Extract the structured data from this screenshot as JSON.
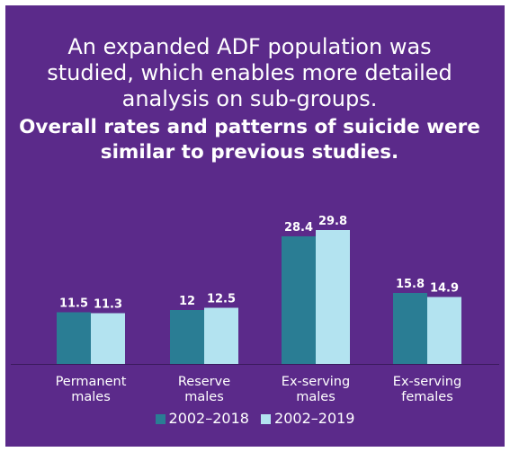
{
  "headline": {
    "lead": "An expanded ADF population was studied, which enables more detailed analysis on sub-groups.",
    "emphasis": "Overall rates and patterns of suicide were similar to previous studies."
  },
  "colors": {
    "background": "#5b2a8a",
    "series_2002_2018": "#2a7d94",
    "series_2002_2019": "#b3e3f0",
    "text": "#ffffff"
  },
  "chart_data": {
    "type": "bar",
    "categories": [
      [
        "Permanent",
        "males"
      ],
      [
        "Reserve",
        "males"
      ],
      [
        "Ex-serving",
        "males"
      ],
      [
        "Ex-serving",
        "females"
      ]
    ],
    "series": [
      {
        "name": "2002–2018",
        "values": [
          11.5,
          12,
          28.4,
          15.8
        ],
        "labels": [
          "11.5",
          "12",
          "28.4",
          "15.8"
        ]
      },
      {
        "name": "2002–2019",
        "values": [
          11.3,
          12.5,
          29.8,
          14.9
        ],
        "labels": [
          "11.3",
          "12.5",
          "29.8",
          "14.9"
        ]
      }
    ],
    "title": "",
    "xlabel": "",
    "ylabel": "",
    "ylim": [
      0,
      30
    ],
    "grid": false,
    "legend": "bottom"
  }
}
